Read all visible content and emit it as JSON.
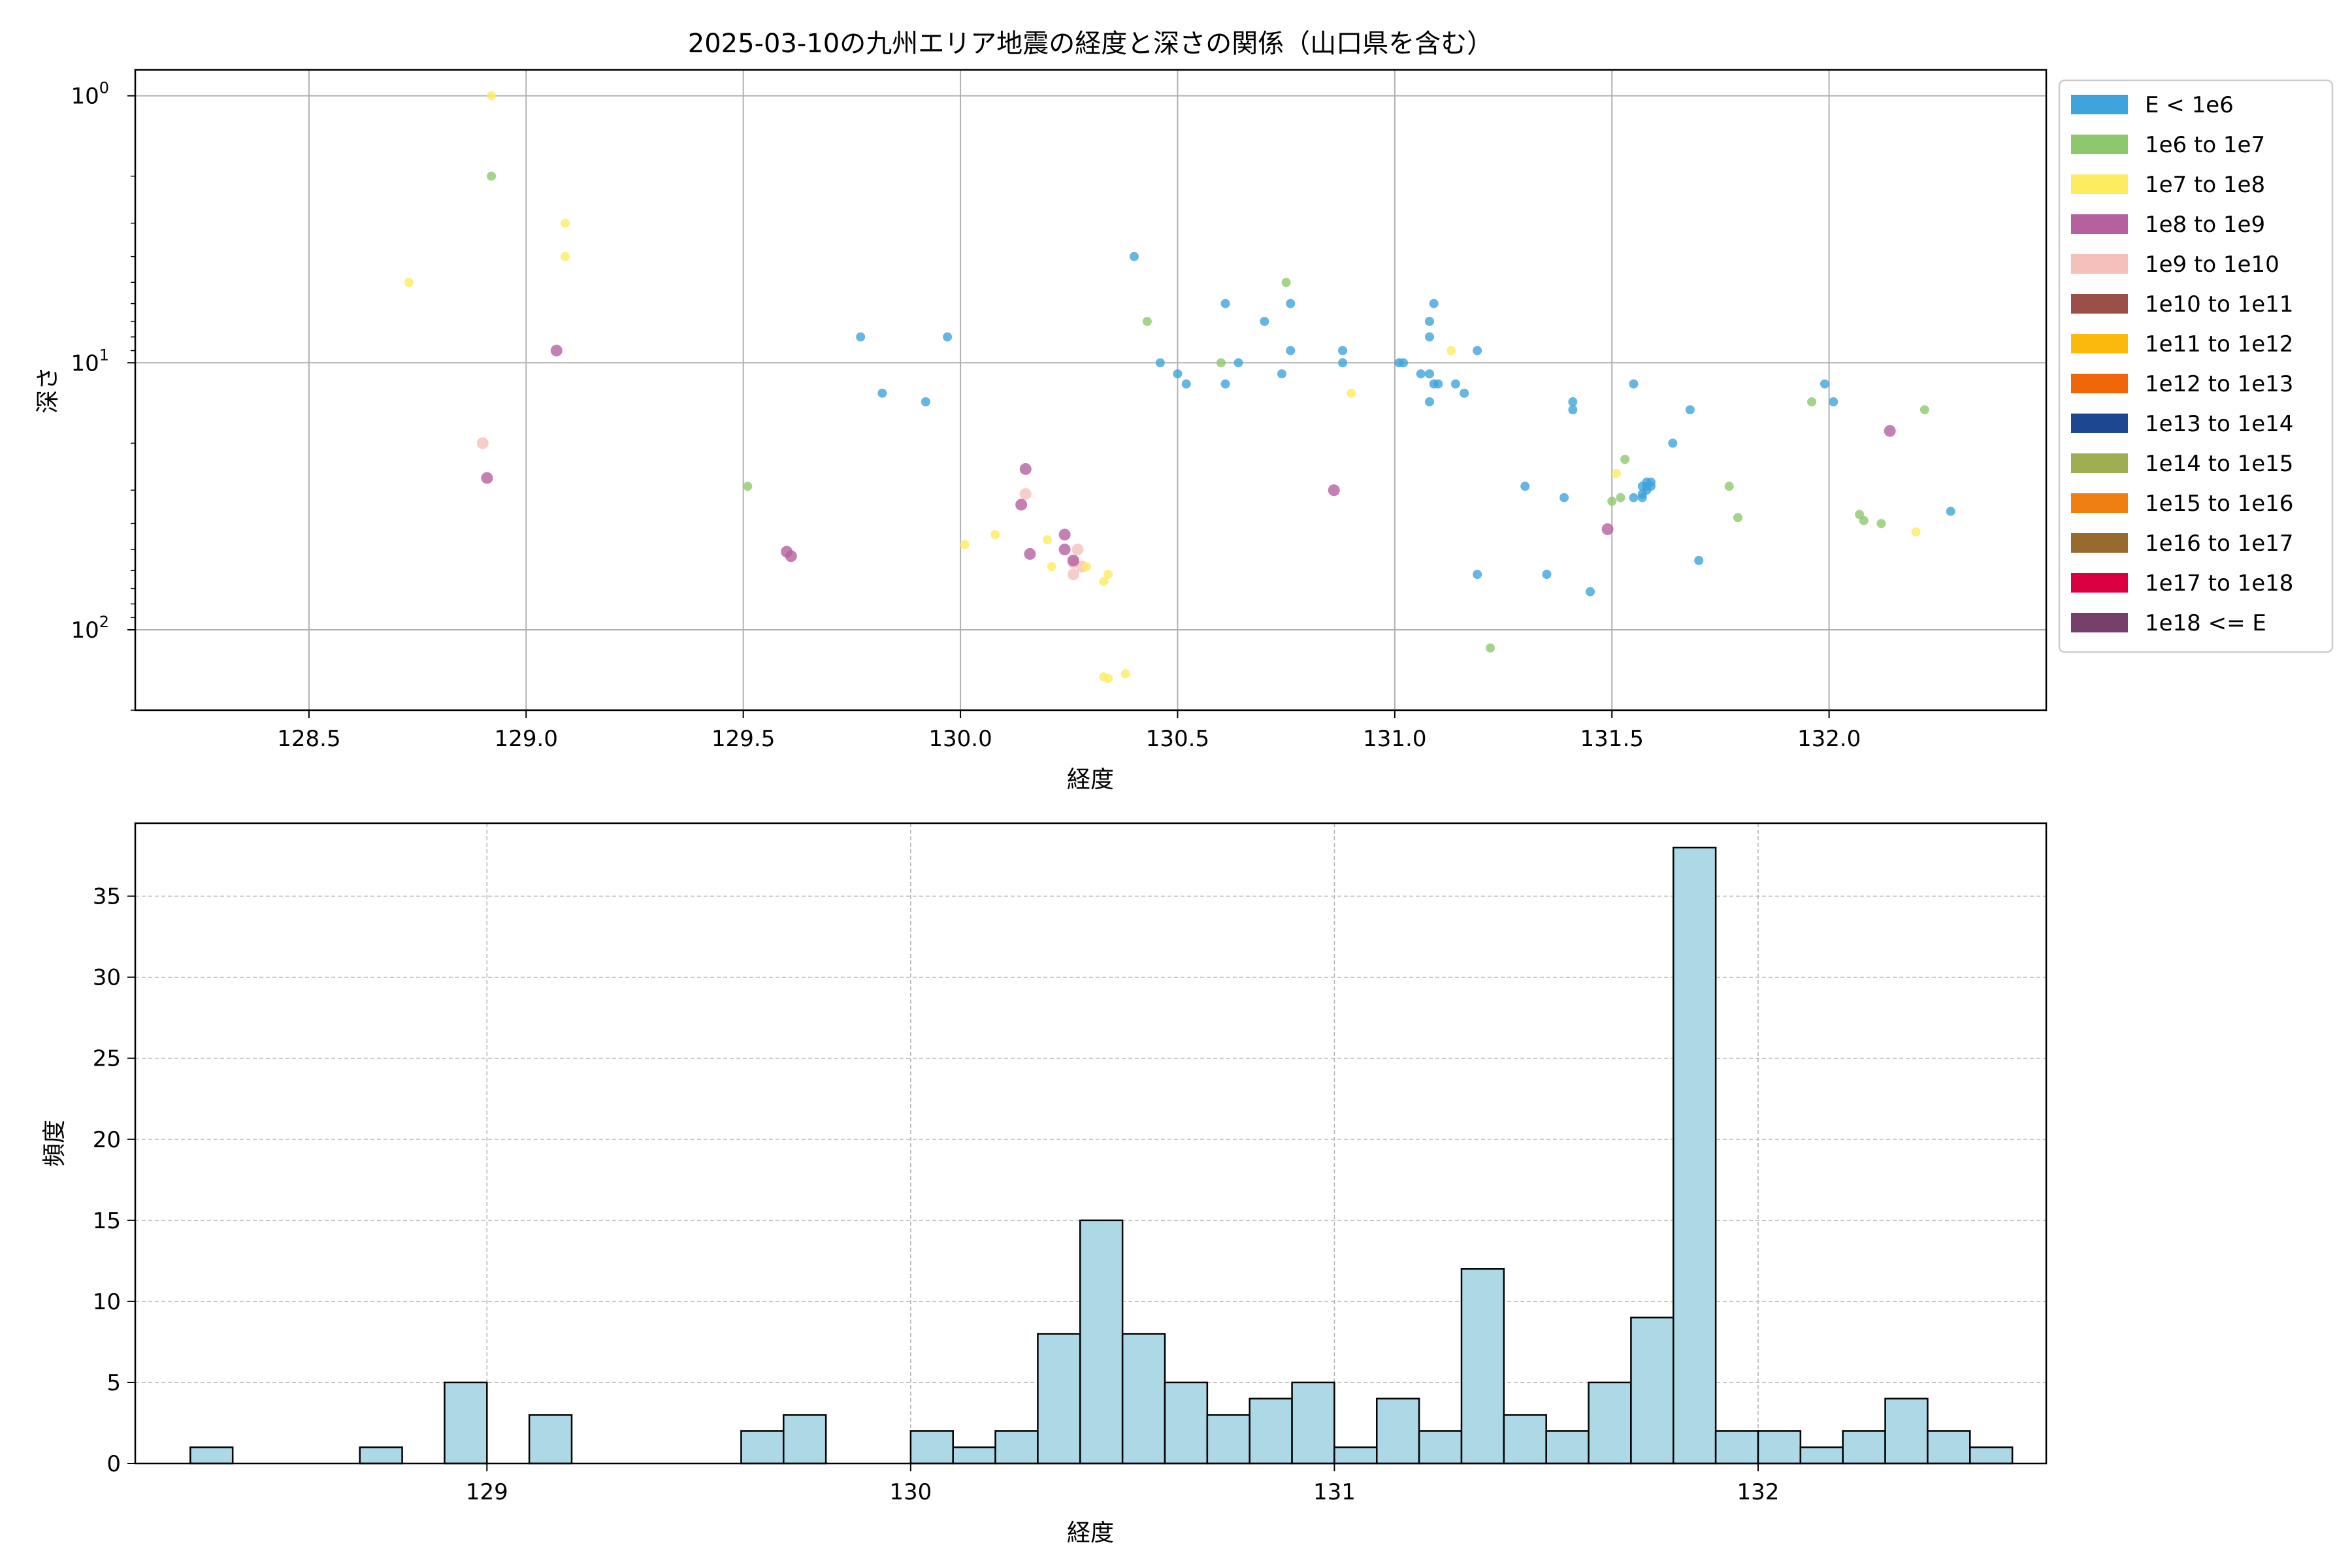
{
  "chart_data": [
    {
      "type": "scatter",
      "title": "2025-03-10の九州エリア地震の経度と深さの関係（山口県を含む）",
      "xlabel": "経度",
      "ylabel": "深さ",
      "xlim": [
        128.1,
        132.5
      ],
      "ylim": [
        200,
        0.8
      ],
      "y_scale": "log-inverted",
      "x_ticks": [
        128.5,
        129.0,
        129.5,
        130.0,
        130.5,
        131.0,
        131.5,
        132.0
      ],
      "x_tick_labels": [
        "128.5",
        "129.0",
        "129.5",
        "130.0",
        "130.5",
        "131.0",
        "131.5",
        "132.0"
      ],
      "y_ticks": [
        1,
        10,
        100
      ],
      "y_tick_labels": [
        "10",
        "10",
        "10"
      ],
      "y_tick_exponents": [
        "0",
        "1",
        "2"
      ],
      "grid": true,
      "legend_position": "outside-right",
      "legend": [
        {
          "label": "E < 1e6",
          "color": "#3fa4db"
        },
        {
          "label": "1e6 to 1e7",
          "color": "#8ec86e"
        },
        {
          "label": "1e7 to 1e8",
          "color": "#fdec60"
        },
        {
          "label": "1e8 to 1e9",
          "color": "#b5609f"
        },
        {
          "label": "1e9 to 1e10",
          "color": "#f5c0bb"
        },
        {
          "label": "1e10 to 1e11",
          "color": "#9a5048"
        },
        {
          "label": "1e11 to 1e12",
          "color": "#fbb90d"
        },
        {
          "label": "1e12 to 1e13",
          "color": "#ee6809"
        },
        {
          "label": "1e13 to 1e14",
          "color": "#1d4891"
        },
        {
          "label": "1e14 to 1e15",
          "color": "#9fae51"
        },
        {
          "label": "1e15 to 1e16",
          "color": "#ee7f10"
        },
        {
          "label": "1e16 to 1e17",
          "color": "#976b2d"
        },
        {
          "label": "1e17 to 1e18",
          "color": "#d9003f"
        },
        {
          "label": "1e18 <= E",
          "color": "#773f6c"
        }
      ],
      "points": [
        {
          "x": 128.92,
          "y": 1.0,
          "c": 2
        },
        {
          "x": 128.92,
          "y": 2.0,
          "c": 1
        },
        {
          "x": 129.09,
          "y": 3.0,
          "c": 2
        },
        {
          "x": 129.09,
          "y": 4.0,
          "c": 2
        },
        {
          "x": 128.73,
          "y": 5.0,
          "c": 2
        },
        {
          "x": 130.4,
          "y": 4.0,
          "c": 0
        },
        {
          "x": 130.43,
          "y": 7.0,
          "c": 1
        },
        {
          "x": 130.75,
          "y": 5.0,
          "c": 1
        },
        {
          "x": 130.76,
          "y": 6.0,
          "c": 0
        },
        {
          "x": 130.61,
          "y": 6.0,
          "c": 0
        },
        {
          "x": 130.7,
          "y": 7.0,
          "c": 0
        },
        {
          "x": 131.09,
          "y": 6.0,
          "c": 0
        },
        {
          "x": 131.08,
          "y": 7.0,
          "c": 0
        },
        {
          "x": 131.08,
          "y": 8.0,
          "c": 0
        },
        {
          "x": 129.77,
          "y": 8.0,
          "c": 0
        },
        {
          "x": 129.97,
          "y": 8.0,
          "c": 0
        },
        {
          "x": 129.07,
          "y": 9.0,
          "c": 3
        },
        {
          "x": 130.46,
          "y": 10.0,
          "c": 0
        },
        {
          "x": 130.5,
          "y": 11.0,
          "c": 0
        },
        {
          "x": 130.52,
          "y": 12.0,
          "c": 0
        },
        {
          "x": 130.6,
          "y": 10.0,
          "c": 1
        },
        {
          "x": 130.61,
          "y": 12.0,
          "c": 0
        },
        {
          "x": 130.64,
          "y": 10.0,
          "c": 0
        },
        {
          "x": 130.74,
          "y": 11.0,
          "c": 0
        },
        {
          "x": 130.76,
          "y": 9.0,
          "c": 0
        },
        {
          "x": 130.88,
          "y": 9.0,
          "c": 0
        },
        {
          "x": 130.88,
          "y": 10.0,
          "c": 0
        },
        {
          "x": 130.9,
          "y": 13.0,
          "c": 2
        },
        {
          "x": 131.01,
          "y": 10.0,
          "c": 0
        },
        {
          "x": 131.02,
          "y": 10.0,
          "c": 0
        },
        {
          "x": 131.06,
          "y": 11.0,
          "c": 0
        },
        {
          "x": 131.08,
          "y": 11.0,
          "c": 0
        },
        {
          "x": 131.09,
          "y": 12.0,
          "c": 0
        },
        {
          "x": 131.1,
          "y": 12.0,
          "c": 0
        },
        {
          "x": 131.08,
          "y": 14.0,
          "c": 0
        },
        {
          "x": 131.14,
          "y": 12.0,
          "c": 0
        },
        {
          "x": 131.16,
          "y": 13.0,
          "c": 0
        },
        {
          "x": 131.13,
          "y": 9.0,
          "c": 2
        },
        {
          "x": 131.19,
          "y": 9.0,
          "c": 0
        },
        {
          "x": 129.82,
          "y": 13.0,
          "c": 0
        },
        {
          "x": 129.92,
          "y": 14.0,
          "c": 0
        },
        {
          "x": 128.9,
          "y": 20.0,
          "c": 4
        },
        {
          "x": 128.91,
          "y": 27.0,
          "c": 3
        },
        {
          "x": 129.51,
          "y": 29.0,
          "c": 1
        },
        {
          "x": 130.15,
          "y": 25.0,
          "c": 3
        },
        {
          "x": 130.15,
          "y": 31.0,
          "c": 4
        },
        {
          "x": 130.14,
          "y": 34.0,
          "c": 3
        },
        {
          "x": 130.24,
          "y": 44.0,
          "c": 3
        },
        {
          "x": 130.2,
          "y": 46.0,
          "c": 2
        },
        {
          "x": 130.08,
          "y": 44.0,
          "c": 2
        },
        {
          "x": 130.01,
          "y": 48.0,
          "c": 2
        },
        {
          "x": 130.16,
          "y": 52.0,
          "c": 3
        },
        {
          "x": 130.24,
          "y": 50.0,
          "c": 3
        },
        {
          "x": 130.27,
          "y": 50.0,
          "c": 4
        },
        {
          "x": 130.26,
          "y": 56.0,
          "c": 4
        },
        {
          "x": 130.28,
          "y": 58.0,
          "c": 4
        },
        {
          "x": 130.26,
          "y": 62.0,
          "c": 4
        },
        {
          "x": 130.29,
          "y": 58.0,
          "c": 2
        },
        {
          "x": 130.26,
          "y": 55.0,
          "c": 3
        },
        {
          "x": 130.21,
          "y": 58.0,
          "c": 2
        },
        {
          "x": 130.33,
          "y": 66.0,
          "c": 2
        },
        {
          "x": 130.34,
          "y": 62.0,
          "c": 2
        },
        {
          "x": 129.6,
          "y": 51.0,
          "c": 3
        },
        {
          "x": 129.61,
          "y": 53.0,
          "c": 3
        },
        {
          "x": 130.33,
          "y": 150.0,
          "c": 2
        },
        {
          "x": 130.34,
          "y": 152.0,
          "c": 2
        },
        {
          "x": 130.38,
          "y": 146.0,
          "c": 2
        },
        {
          "x": 130.86,
          "y": 30.0,
          "c": 3
        },
        {
          "x": 131.41,
          "y": 14.0,
          "c": 0
        },
        {
          "x": 131.41,
          "y": 15.0,
          "c": 0
        },
        {
          "x": 131.55,
          "y": 12.0,
          "c": 0
        },
        {
          "x": 131.68,
          "y": 15.0,
          "c": 0
        },
        {
          "x": 131.64,
          "y": 20.0,
          "c": 0
        },
        {
          "x": 131.53,
          "y": 23.0,
          "c": 1
        },
        {
          "x": 131.51,
          "y": 26.0,
          "c": 2
        },
        {
          "x": 131.3,
          "y": 29.0,
          "c": 0
        },
        {
          "x": 131.39,
          "y": 32.0,
          "c": 0
        },
        {
          "x": 131.5,
          "y": 33.0,
          "c": 1
        },
        {
          "x": 131.52,
          "y": 32.0,
          "c": 1
        },
        {
          "x": 131.55,
          "y": 32.0,
          "c": 0
        },
        {
          "x": 131.57,
          "y": 31.0,
          "c": 0
        },
        {
          "x": 131.57,
          "y": 32.0,
          "c": 0
        },
        {
          "x": 131.58,
          "y": 30.0,
          "c": 0
        },
        {
          "x": 131.57,
          "y": 29.0,
          "c": 0
        },
        {
          "x": 131.58,
          "y": 28.0,
          "c": 0
        },
        {
          "x": 131.59,
          "y": 28.0,
          "c": 0
        },
        {
          "x": 131.58,
          "y": 29.0,
          "c": 0
        },
        {
          "x": 131.59,
          "y": 29.0,
          "c": 0
        },
        {
          "x": 131.49,
          "y": 42.0,
          "c": 3
        },
        {
          "x": 131.77,
          "y": 29.0,
          "c": 1
        },
        {
          "x": 131.79,
          "y": 38.0,
          "c": 1
        },
        {
          "x": 131.7,
          "y": 55.0,
          "c": 0
        },
        {
          "x": 131.19,
          "y": 62.0,
          "c": 0
        },
        {
          "x": 131.35,
          "y": 62.0,
          "c": 0
        },
        {
          "x": 131.45,
          "y": 72.0,
          "c": 0
        },
        {
          "x": 131.22,
          "y": 117.0,
          "c": 1
        },
        {
          "x": 131.96,
          "y": 14.0,
          "c": 1
        },
        {
          "x": 131.99,
          "y": 12.0,
          "c": 0
        },
        {
          "x": 132.01,
          "y": 14.0,
          "c": 0
        },
        {
          "x": 132.14,
          "y": 18.0,
          "c": 3
        },
        {
          "x": 132.22,
          "y": 15.0,
          "c": 1
        },
        {
          "x": 132.07,
          "y": 37.0,
          "c": 1
        },
        {
          "x": 132.08,
          "y": 39.0,
          "c": 1
        },
        {
          "x": 132.12,
          "y": 40.0,
          "c": 1
        },
        {
          "x": 132.2,
          "y": 43.0,
          "c": 2
        },
        {
          "x": 132.28,
          "y": 36.0,
          "c": 0
        }
      ]
    },
    {
      "type": "bar",
      "title": "",
      "xlabel": "経度",
      "ylabel": "頻度",
      "xlim": [
        128.17,
        132.68
      ],
      "ylim": [
        0,
        39.5
      ],
      "x_ticks": [
        129,
        130,
        131,
        132
      ],
      "x_tick_labels": [
        "129",
        "130",
        "131",
        "132"
      ],
      "y_ticks": [
        0,
        5,
        10,
        15,
        20,
        25,
        30,
        35
      ],
      "y_tick_labels": [
        "0",
        "5",
        "10",
        "15",
        "20",
        "25",
        "30",
        "35"
      ],
      "grid": true,
      "bar_color": "#add8e6",
      "bin_start": 128.3,
      "bin_width": 0.1,
      "values": [
        1,
        0,
        0,
        0,
        1,
        0,
        5,
        0,
        3,
        0,
        0,
        0,
        0,
        2,
        3,
        0,
        0,
        2,
        1,
        2,
        8,
        15,
        8,
        5,
        3,
        4,
        5,
        1,
        4,
        2,
        12,
        3,
        2,
        5,
        9,
        38,
        2,
        2,
        1,
        2,
        4,
        2,
        1
      ]
    }
  ]
}
